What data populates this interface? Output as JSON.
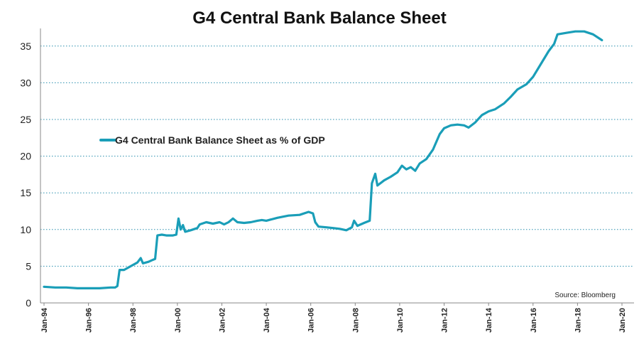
{
  "chart_data": {
    "type": "line",
    "title": "G4 Central Bank Balance Sheet",
    "xlabel": "",
    "ylabel": "",
    "ylim": [
      0,
      37
    ],
    "yticks": [
      0,
      5,
      10,
      15,
      20,
      25,
      30,
      35
    ],
    "xticks": [
      "Jan-94",
      "Jan-96",
      "Jan-98",
      "Jan-00",
      "Jan-02",
      "Jan-04",
      "Jan-06",
      "Jan-08",
      "Jan-10",
      "Jan-12",
      "Jan-14",
      "Jan-16",
      "Jan-18",
      "Jan-20"
    ],
    "grid": true,
    "legend_position": "upper-left",
    "source": "Source: Bloomberg",
    "colors": {
      "series": "#1a9eb8",
      "grid": "#2a8fae",
      "axis": "#888888"
    },
    "series": [
      {
        "name": "G4 Central Bank Balance Sheet as % of GDP",
        "points": [
          [
            1994.0,
            2.2
          ],
          [
            1994.5,
            2.1
          ],
          [
            1995.0,
            2.1
          ],
          [
            1995.5,
            2.0
          ],
          [
            1996.0,
            2.0
          ],
          [
            1996.5,
            2.0
          ],
          [
            1997.0,
            2.1
          ],
          [
            1997.2,
            2.1
          ],
          [
            1997.3,
            2.3
          ],
          [
            1997.4,
            4.5
          ],
          [
            1997.6,
            4.5
          ],
          [
            1997.9,
            5.0
          ],
          [
            1998.2,
            5.5
          ],
          [
            1998.35,
            6.1
          ],
          [
            1998.45,
            5.4
          ],
          [
            1998.7,
            5.6
          ],
          [
            1998.85,
            5.8
          ],
          [
            1999.0,
            6.0
          ],
          [
            1999.1,
            9.2
          ],
          [
            1999.3,
            9.3
          ],
          [
            1999.5,
            9.2
          ],
          [
            1999.8,
            9.2
          ],
          [
            1999.95,
            9.3
          ],
          [
            2000.05,
            11.5
          ],
          [
            2000.15,
            10.0
          ],
          [
            2000.25,
            10.6
          ],
          [
            2000.35,
            9.7
          ],
          [
            2000.6,
            9.9
          ],
          [
            2000.9,
            10.2
          ],
          [
            2001.0,
            10.7
          ],
          [
            2001.3,
            11.0
          ],
          [
            2001.6,
            10.8
          ],
          [
            2001.9,
            11.0
          ],
          [
            2002.1,
            10.7
          ],
          [
            2002.3,
            11.0
          ],
          [
            2002.5,
            11.5
          ],
          [
            2002.7,
            11.0
          ],
          [
            2003.0,
            10.9
          ],
          [
            2003.3,
            11.0
          ],
          [
            2003.6,
            11.2
          ],
          [
            2003.8,
            11.3
          ],
          [
            2004.0,
            11.2
          ],
          [
            2004.5,
            11.6
          ],
          [
            2005.0,
            11.9
          ],
          [
            2005.5,
            12.0
          ],
          [
            2005.9,
            12.4
          ],
          [
            2006.1,
            12.2
          ],
          [
            2006.2,
            11.0
          ],
          [
            2006.35,
            10.4
          ],
          [
            2006.7,
            10.3
          ],
          [
            2007.0,
            10.2
          ],
          [
            2007.3,
            10.1
          ],
          [
            2007.6,
            9.9
          ],
          [
            2007.85,
            10.3
          ],
          [
            2007.95,
            11.2
          ],
          [
            2008.1,
            10.5
          ],
          [
            2008.4,
            10.9
          ],
          [
            2008.65,
            11.2
          ],
          [
            2008.75,
            16.3
          ],
          [
            2008.9,
            17.6
          ],
          [
            2009.0,
            16.0
          ],
          [
            2009.3,
            16.7
          ],
          [
            2009.6,
            17.2
          ],
          [
            2009.9,
            17.8
          ],
          [
            2010.1,
            18.7
          ],
          [
            2010.3,
            18.2
          ],
          [
            2010.5,
            18.5
          ],
          [
            2010.7,
            18.0
          ],
          [
            2010.9,
            19.0
          ],
          [
            2011.2,
            19.6
          ],
          [
            2011.5,
            20.9
          ],
          [
            2011.8,
            23.0
          ],
          [
            2012.0,
            23.8
          ],
          [
            2012.3,
            24.2
          ],
          [
            2012.6,
            24.3
          ],
          [
            2012.9,
            24.2
          ],
          [
            2013.1,
            23.9
          ],
          [
            2013.4,
            24.6
          ],
          [
            2013.7,
            25.6
          ],
          [
            2014.0,
            26.1
          ],
          [
            2014.3,
            26.4
          ],
          [
            2014.7,
            27.2
          ],
          [
            2015.0,
            28.1
          ],
          [
            2015.3,
            29.1
          ],
          [
            2015.7,
            29.8
          ],
          [
            2016.0,
            30.8
          ],
          [
            2016.4,
            32.8
          ],
          [
            2016.7,
            34.3
          ],
          [
            2016.95,
            35.3
          ],
          [
            2017.1,
            36.6
          ],
          [
            2017.5,
            36.8
          ],
          [
            2017.9,
            37.0
          ],
          [
            2018.3,
            37.0
          ],
          [
            2018.7,
            36.6
          ],
          [
            2019.1,
            35.8
          ]
        ]
      }
    ]
  }
}
